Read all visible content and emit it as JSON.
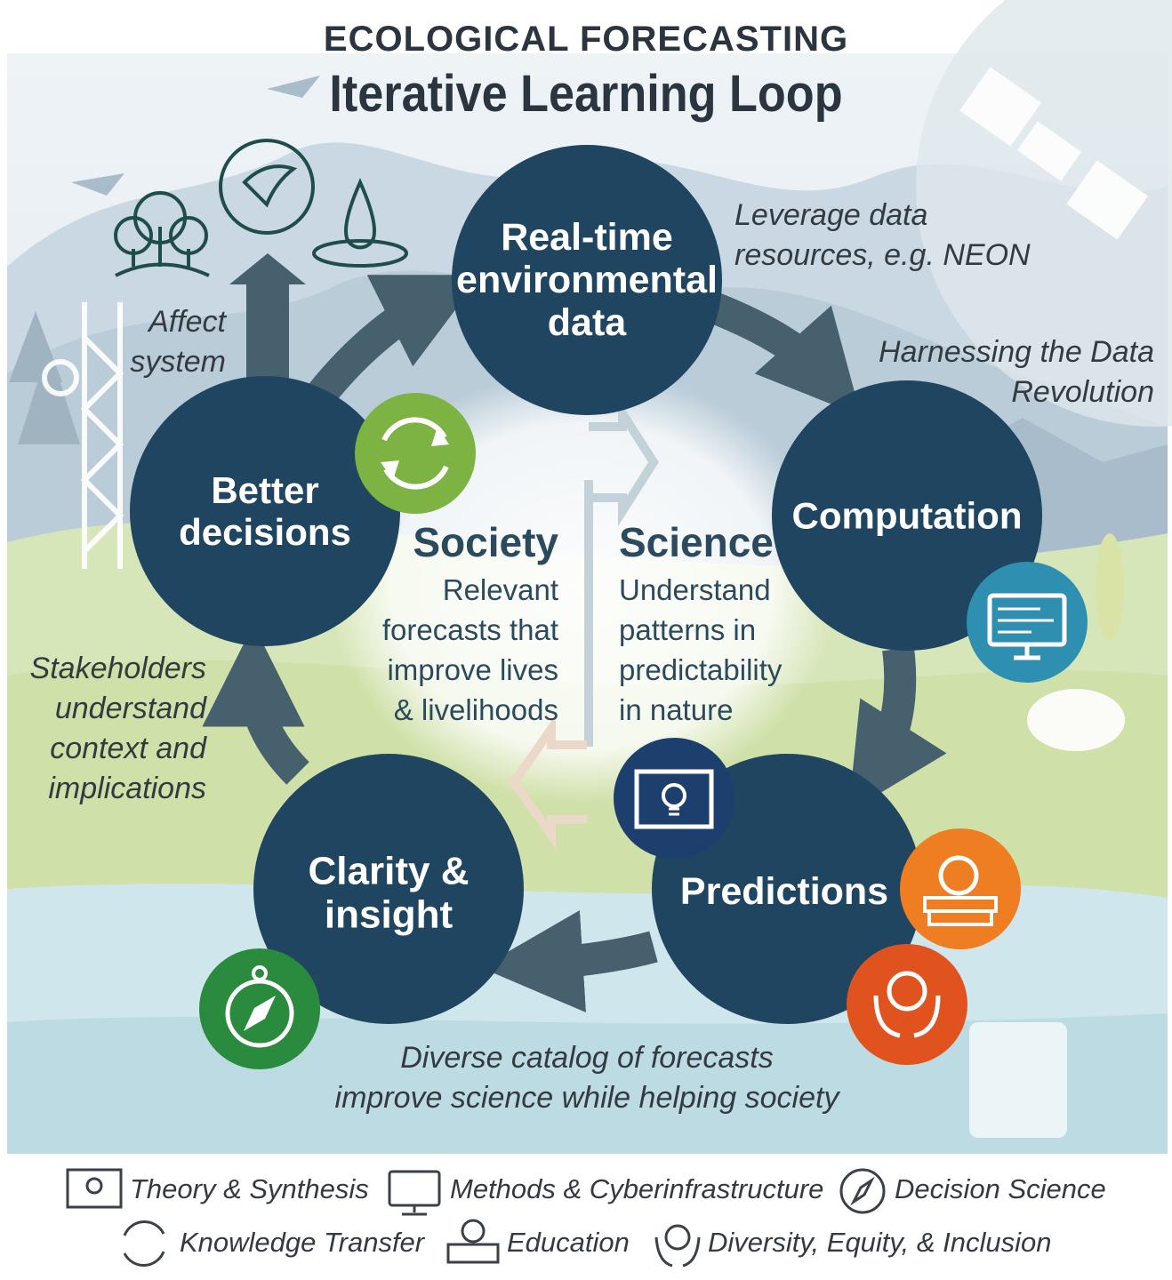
{
  "header": {
    "supertitle": "ECOLOGICAL FORECASTING",
    "title": "Iterative Learning Loop"
  },
  "colors": {
    "node_fill": "#1f4560",
    "arrow": "#46606e",
    "knowledge_transfer": "#7cb342",
    "methods": "#2e8fb0",
    "theory": "#1d3f6e",
    "education": "#ef7d22",
    "dei": "#e0531f",
    "decision_science": "#2a8a3e"
  },
  "nodes": {
    "realtime": [
      "Real-time",
      "environmental",
      "data"
    ],
    "computation": [
      "Computation"
    ],
    "predictions": [
      "Predictions"
    ],
    "clarity": [
      "Clarity &",
      "insight"
    ],
    "decisions": [
      "Better",
      "decisions"
    ]
  },
  "annotations": {
    "leverage": [
      "Leverage data",
      "resources, e.g. NEON"
    ],
    "harnessing": [
      "Harnessing the Data",
      "Revolution"
    ],
    "affect": [
      "Affect",
      "system"
    ],
    "stakeholders": [
      "Stakeholders",
      "understand",
      "context and",
      "implications"
    ],
    "catalog": [
      "Diverse catalog of forecasts",
      "improve science while helping society"
    ]
  },
  "center": {
    "society_title": "Society",
    "society_body": [
      "Relevant",
      "forecasts that",
      "improve lives",
      "& livelihoods"
    ],
    "science_title": "Science",
    "science_body": [
      "Understand",
      "patterns in",
      "predictability",
      "in nature"
    ]
  },
  "legend": [
    {
      "label": "Theory & Synthesis",
      "icon": "blueprint-bulb-icon"
    },
    {
      "label": "Methods & Cyberinfrastructure",
      "icon": "monitor-circuit-icon"
    },
    {
      "label": "Decision Science",
      "icon": "compass-icon"
    },
    {
      "label": "Knowledge Transfer",
      "icon": "cycle-arrows-icon"
    },
    {
      "label": "Education",
      "icon": "apple-books-icon"
    },
    {
      "label": "Diversity, Equity, & Inclusion",
      "icon": "hands-globe-icon"
    }
  ]
}
